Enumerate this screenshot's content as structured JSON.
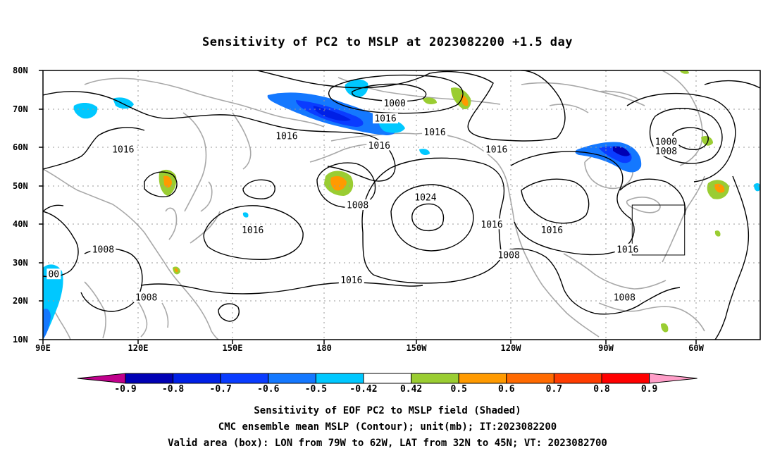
{
  "title": "Sensitivity of PC2 to MSLP at 2023082200 +1.5 day",
  "lat_labels": [
    "80N",
    "70N",
    "60N",
    "50N",
    "40N",
    "30N",
    "20N",
    "10N"
  ],
  "lon_labels": [
    "90E",
    "120E",
    "150E",
    "180",
    "150W",
    "120W",
    "90W",
    "60W"
  ],
  "contour_labels": [
    {
      "text": "1000",
      "lon": -156,
      "lat": 71.5
    },
    {
      "text": "1016",
      "lon": -159,
      "lat": 67.5
    },
    {
      "text": "1016",
      "lon": -143,
      "lat": 64
    },
    {
      "text": "1016",
      "lon": 169,
      "lat": 63
    },
    {
      "text": "1016",
      "lon": -161,
      "lat": 60.5
    },
    {
      "text": "1016",
      "lon": 116,
      "lat": 59.5
    },
    {
      "text": "1016",
      "lon": -123,
      "lat": 59.5
    },
    {
      "text": "1000",
      "lon": -68,
      "lat": 61.5
    },
    {
      "text": "1008",
      "lon": -68,
      "lat": 59
    },
    {
      "text": "1024",
      "lon": -146,
      "lat": 47
    },
    {
      "text": "1008",
      "lon": -168,
      "lat": 45
    },
    {
      "text": "1016",
      "lon": 158,
      "lat": 38.5
    },
    {
      "text": "1016",
      "lon": -124.5,
      "lat": 40
    },
    {
      "text": "1016",
      "lon": -105,
      "lat": 38.5
    },
    {
      "text": "1016",
      "lon": -80.5,
      "lat": 33.5
    },
    {
      "text": "1008",
      "lon": 109.5,
      "lat": 33.5
    },
    {
      "text": "1008",
      "lon": -119,
      "lat": 32
    },
    {
      "text": "1016",
      "lon": -170,
      "lat": 25.5
    },
    {
      "text": "1008",
      "lon": 123.5,
      "lat": 21
    },
    {
      "text": "1008",
      "lon": -81.5,
      "lat": 21
    },
    {
      "text": "00",
      "lon": 93.5,
      "lat": 27
    }
  ],
  "valid_box": {
    "lon_min": -79,
    "lon_max": -62,
    "lat_min": 32,
    "lat_max": 45
  },
  "colorbar": {
    "labels": [
      "-0.9",
      "-0.8",
      "-0.7",
      "-0.6",
      "-0.5",
      "-0.42",
      "0.42",
      "0.5",
      "0.6",
      "0.7",
      "0.8",
      "0.9"
    ],
    "colors": [
      "#c0008c",
      "#0000b4",
      "#0020e6",
      "#0a3cff",
      "#1478ff",
      "#00c8ff",
      "#ffffff",
      "#9acd32",
      "#ff9a00",
      "#ff6a00",
      "#ff3c00",
      "#ff0000",
      "#ff9ec8"
    ]
  },
  "footer": {
    "line1": "Sensitivity of EOF PC2 to MSLP field (Shaded)",
    "line2": "CMC ensemble mean MSLP (Contour); unit(mb); IT:2023082200",
    "line3": "Valid area (box): LON from 79W to 62W, LAT from 32N to 45N; VT: 2023082700"
  }
}
